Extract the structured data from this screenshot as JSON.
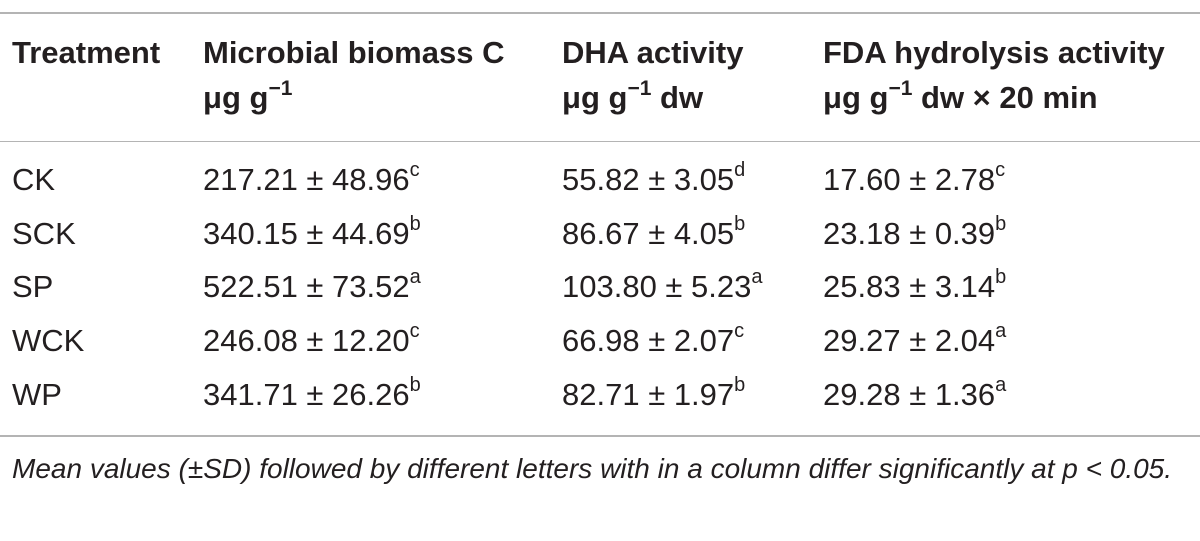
{
  "table": {
    "headers": [
      {
        "title": "Treatment",
        "unit": "",
        "unit_sup": "",
        "unit_rest": ""
      },
      {
        "title": "Microbial biomass C",
        "unit": "μg g",
        "unit_sup": "−1",
        "unit_rest": ""
      },
      {
        "title": "DHA activity",
        "unit": "μg g",
        "unit_sup": "−1",
        "unit_rest": " dw"
      },
      {
        "title": "FDA hydrolysis activity",
        "unit": "μg g",
        "unit_sup": "−1",
        "unit_rest": " dw × 20 min"
      }
    ],
    "rows": [
      {
        "treatment": "CK",
        "mbc": {
          "value": "217.21 ± 48.96",
          "letter": "c"
        },
        "dha": {
          "value": "55.82 ± 3.05",
          "letter": "d"
        },
        "fda": {
          "value": "17.60 ± 2.78",
          "letter": "c"
        }
      },
      {
        "treatment": "SCK",
        "mbc": {
          "value": "340.15 ± 44.69",
          "letter": "b"
        },
        "dha": {
          "value": "86.67 ± 4.05",
          "letter": "b"
        },
        "fda": {
          "value": "23.18 ± 0.39",
          "letter": "b"
        }
      },
      {
        "treatment": "SP",
        "mbc": {
          "value": "522.51 ± 73.52",
          "letter": "a"
        },
        "dha": {
          "value": "103.80 ± 5.23",
          "letter": "a"
        },
        "fda": {
          "value": "25.83 ± 3.14",
          "letter": "b"
        }
      },
      {
        "treatment": "WCK",
        "mbc": {
          "value": "246.08 ± 12.20",
          "letter": "c"
        },
        "dha": {
          "value": "66.98 ± 2.07",
          "letter": "c"
        },
        "fda": {
          "value": "29.27 ± 2.04",
          "letter": "a"
        }
      },
      {
        "treatment": "WP",
        "mbc": {
          "value": "341.71 ± 26.26",
          "letter": "b"
        },
        "dha": {
          "value": "82.71 ± 1.97",
          "letter": "b"
        },
        "fda": {
          "value": "29.28 ± 1.36",
          "letter": "a"
        }
      }
    ],
    "footnote": "Mean values (±SD) followed by different letters with in a column differ significantly at p < 0.05."
  },
  "colors": {
    "text": "#231f20",
    "rule": "#b4b4b4",
    "background": "#ffffff"
  }
}
